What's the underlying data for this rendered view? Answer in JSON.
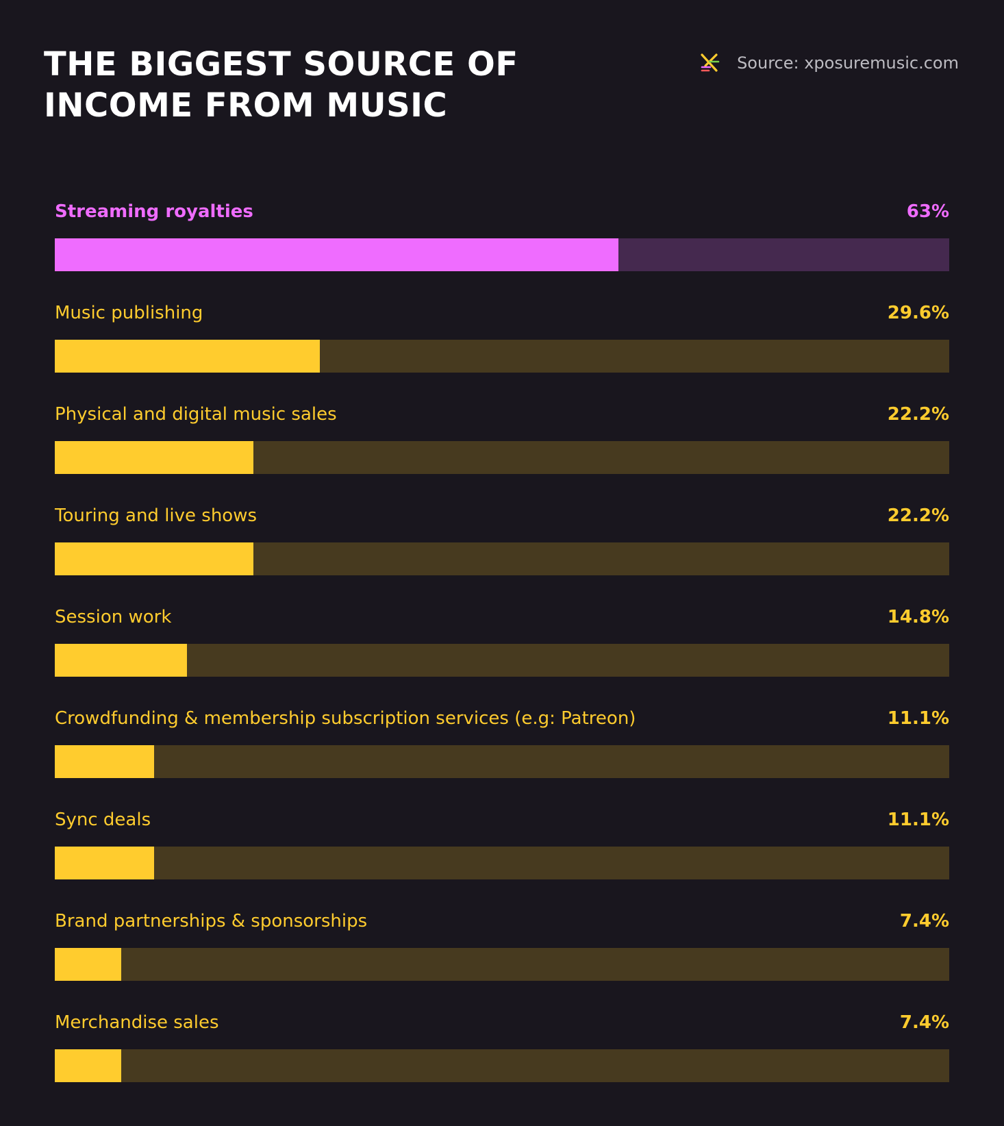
{
  "header": {
    "title_line1": "THE BIGGEST SOURCE OF",
    "title_line2": "INCOME FROM MUSIC",
    "source": "Source: xposuremusic.com",
    "logo_icon": "xposure-logo-icon"
  },
  "colors": {
    "background": "#19161e",
    "highlight": "#ef6cff",
    "highlight_track": "#45294f",
    "default": "#ffcc2e",
    "default_track": "#473a1f"
  },
  "chart_data": {
    "type": "bar",
    "orientation": "horizontal",
    "title": "THE BIGGEST SOURCE OF INCOME FROM MUSIC",
    "categories": [
      "Streaming royalties",
      "Music publishing",
      "Physical and digital music sales",
      "Touring and live shows",
      "Session work",
      "Crowdfunding & membership subscription services (e.g: Patreon)",
      "Sync deals",
      "Brand partnerships & sponsorships",
      "Merchandise sales"
    ],
    "values": [
      63,
      29.6,
      22.2,
      22.2,
      14.8,
      11.1,
      11.1,
      7.4,
      7.4
    ],
    "value_labels": [
      "63%",
      "29.6%",
      "22.2%",
      "22.2%",
      "14.8%",
      "11.1%",
      "11.1%",
      "7.4%",
      "7.4%"
    ],
    "highlighted_index": 0,
    "xlim": [
      0,
      100
    ],
    "grid": false,
    "legend": "none"
  }
}
